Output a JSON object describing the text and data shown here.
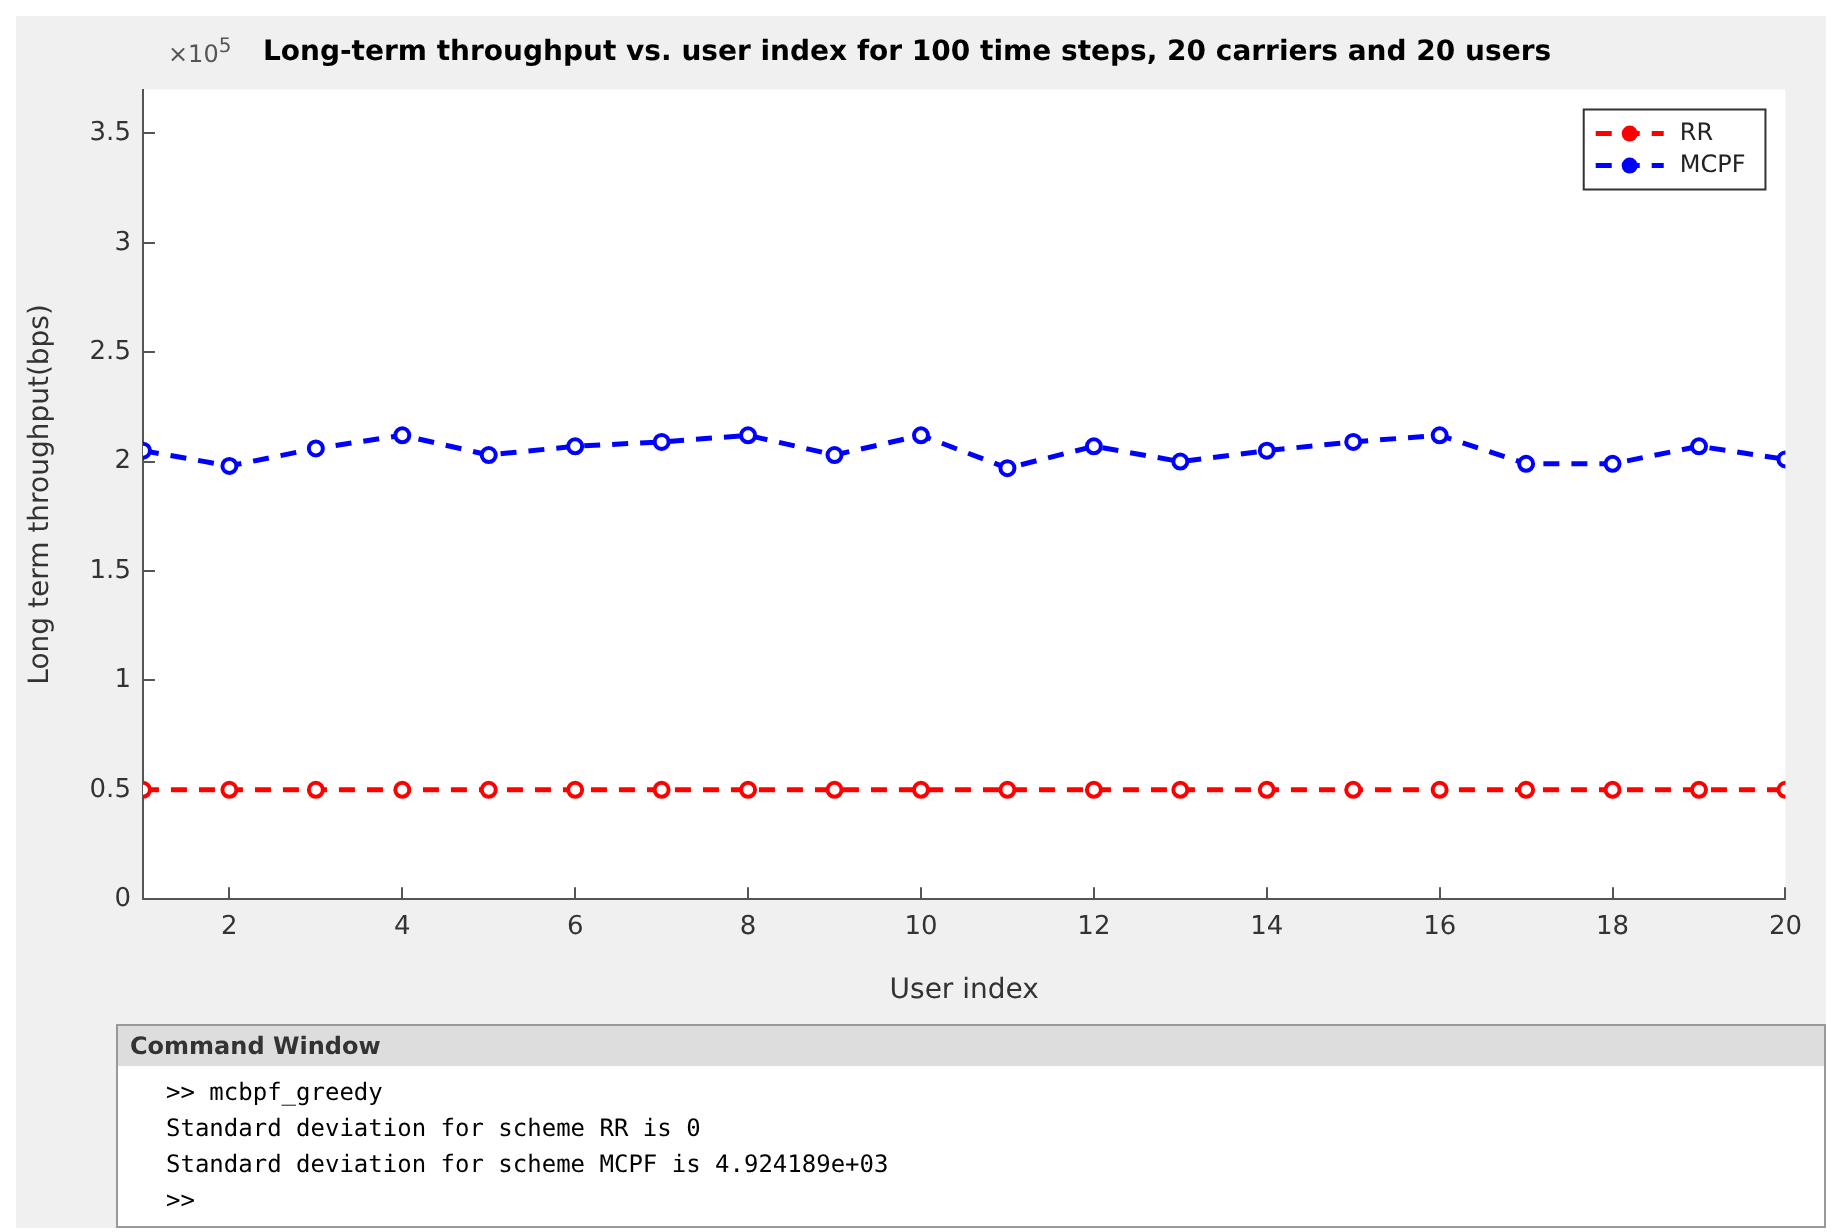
{
  "chart_data": {
    "type": "line",
    "title": "Long-term throughput vs. user index for 100 time steps, 20 carriers and 20 users",
    "xlabel": "User index",
    "ylabel": "Long term throughput(bps)",
    "x": [
      1,
      2,
      3,
      4,
      5,
      6,
      7,
      8,
      9,
      10,
      11,
      12,
      13,
      14,
      15,
      16,
      17,
      18,
      19,
      20
    ],
    "series": [
      {
        "name": "RR",
        "color": "#ff0000",
        "values": [
          0.5,
          0.5,
          0.5,
          0.5,
          0.5,
          0.5,
          0.5,
          0.5,
          0.5,
          0.5,
          0.5,
          0.5,
          0.5,
          0.5,
          0.5,
          0.5,
          0.5,
          0.5,
          0.5,
          0.5
        ]
      },
      {
        "name": "MCPF",
        "color": "#0000ff",
        "values": [
          2.05,
          1.98,
          2.06,
          2.12,
          2.03,
          2.07,
          2.09,
          2.12,
          2.03,
          2.12,
          1.97,
          2.07,
          2,
          2.05,
          2.09,
          2.12,
          1.99,
          1.99,
          2.07,
          2.01
        ]
      }
    ],
    "xlim": [
      1,
      20
    ],
    "xticks": [
      2,
      4,
      6,
      8,
      10,
      12,
      14,
      16,
      18,
      20
    ],
    "ylim": [
      0,
      3.7
    ],
    "yticks": [
      0,
      0.5,
      1,
      1.5,
      2,
      2.5,
      3,
      3.5
    ],
    "grid": false,
    "legend": "top right",
    "marker": "circle",
    "line_style": "dashed",
    "annotations": [
      "×10$^{5}$",
      "Command Window",
      ">> mcbpf_greedy",
      "Standard deviation for scheme RR is 0",
      "Standard deviation for scheme MCPF is 4.924189e+03",
      ">>"
    ]
  }
}
